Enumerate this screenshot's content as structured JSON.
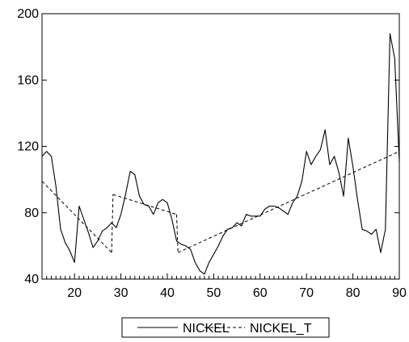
{
  "chart_data": {
    "type": "line",
    "title": "",
    "xlabel": "",
    "ylabel": "",
    "xlim": [
      13,
      90
    ],
    "ylim": [
      40,
      200
    ],
    "x_ticks": [
      20,
      30,
      40,
      50,
      60,
      70,
      80,
      90
    ],
    "x_tick_labels": [
      "20",
      "30",
      "40",
      "50",
      "60",
      "70",
      "80",
      "90"
    ],
    "y_ticks": [
      40,
      80,
      120,
      160,
      200
    ],
    "y_tick_labels": [
      "40",
      "80",
      "120",
      "160",
      "200"
    ],
    "grid": false,
    "legend_position": "bottom",
    "series": [
      {
        "name": "NICKEL",
        "style": "solid",
        "color": "#000000",
        "points": [
          [
            13,
            114
          ],
          [
            14,
            117
          ],
          [
            15,
            114
          ],
          [
            16,
            96
          ],
          [
            17,
            70
          ],
          [
            18,
            62
          ],
          [
            19,
            57
          ],
          [
            20,
            50
          ],
          [
            21,
            84
          ],
          [
            22,
            76
          ],
          [
            23,
            68
          ],
          [
            24,
            59
          ],
          [
            25,
            63
          ],
          [
            26,
            69
          ],
          [
            27,
            71
          ],
          [
            28,
            74
          ],
          [
            29,
            71
          ],
          [
            30,
            79
          ],
          [
            31,
            91
          ],
          [
            32,
            105
          ],
          [
            33,
            103
          ],
          [
            34,
            90
          ],
          [
            35,
            85
          ],
          [
            36,
            84
          ],
          [
            37,
            79
          ],
          [
            38,
            86
          ],
          [
            39,
            88
          ],
          [
            40,
            86
          ],
          [
            41,
            76
          ],
          [
            42,
            63
          ],
          [
            43,
            61
          ],
          [
            44,
            60
          ],
          [
            45,
            58
          ],
          [
            46,
            50
          ],
          [
            47,
            45
          ],
          [
            48,
            43
          ],
          [
            49,
            50
          ],
          [
            50,
            55
          ],
          [
            51,
            60
          ],
          [
            52,
            66
          ],
          [
            53,
            70
          ],
          [
            54,
            71
          ],
          [
            55,
            74
          ],
          [
            56,
            72
          ],
          [
            57,
            79
          ],
          [
            58,
            78
          ],
          [
            59,
            78
          ],
          [
            60,
            78
          ],
          [
            61,
            82
          ],
          [
            62,
            84
          ],
          [
            63,
            84
          ],
          [
            64,
            83
          ],
          [
            65,
            81
          ],
          [
            66,
            79
          ],
          [
            67,
            86
          ],
          [
            68,
            90
          ],
          [
            69,
            99
          ],
          [
            70,
            117
          ],
          [
            71,
            109
          ],
          [
            72,
            114
          ],
          [
            73,
            118
          ],
          [
            74,
            130
          ],
          [
            75,
            109
          ],
          [
            76,
            114
          ],
          [
            77,
            104
          ],
          [
            78,
            90
          ],
          [
            79,
            125
          ],
          [
            80,
            108
          ],
          [
            81,
            88
          ],
          [
            82,
            70
          ],
          [
            83,
            69
          ],
          [
            84,
            67
          ],
          [
            85,
            70
          ],
          [
            86,
            56
          ],
          [
            87,
            70
          ],
          [
            88,
            188
          ],
          [
            89,
            173
          ],
          [
            90,
            111
          ]
        ]
      },
      {
        "name": "NICKEL_T",
        "style": "dashed",
        "color": "#000000",
        "segments": [
          [
            [
              13,
              99
            ],
            [
              28,
              56
            ]
          ],
          [
            [
              28.3,
              91
            ],
            [
              42,
              79
            ]
          ],
          [
            [
              42.3,
              56
            ],
            [
              90,
              117
            ]
          ]
        ]
      }
    ]
  }
}
